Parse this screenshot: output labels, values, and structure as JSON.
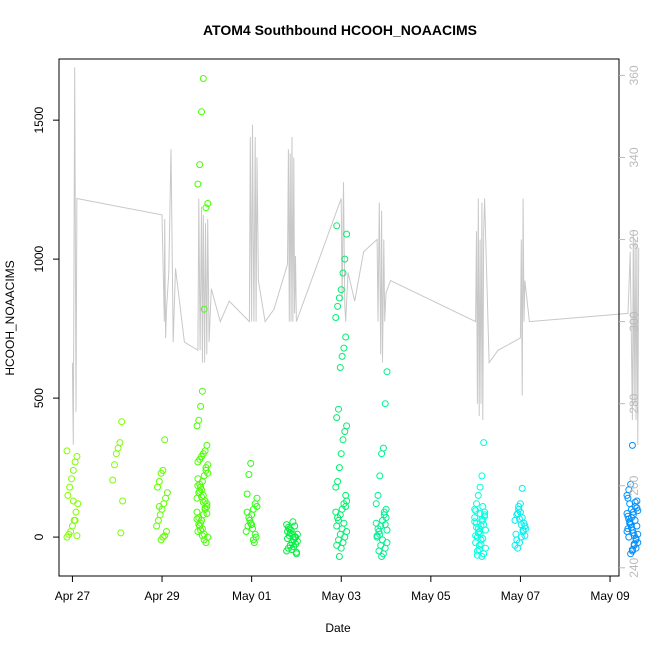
{
  "chart_data": {
    "type": "scatter",
    "title": "ATOM4 Southbound HCOOH_NOAACIMS",
    "xlabel": "Date",
    "ylabel": "HCOOH_NOAACIMS",
    "x_ticks": [
      "Apr 27",
      "Apr 29",
      "May 01",
      "May 03",
      "May 05",
      "May 07",
      "May 09"
    ],
    "x_range_days": [
      26.7,
      39.2
    ],
    "ylim": [
      -140,
      1720
    ],
    "y_ticks": [
      "0",
      "500",
      "1000",
      "1500"
    ],
    "y_tick_values": [
      0,
      500,
      1000,
      1500
    ],
    "y2lim": [
      238,
      364
    ],
    "y2_ticks": [
      "240",
      "260",
      "280",
      "300",
      "320",
      "340",
      "360"
    ],
    "y2_tick_values": [
      240,
      260,
      280,
      300,
      320,
      340,
      360
    ],
    "grid": false,
    "colors": {
      "line": "#c8c8c8",
      "axis": "#000000",
      "right_axis": "#bbbbbb"
    },
    "series": [
      {
        "day": 27.0,
        "color": "#80ff00",
        "values": [
          310,
          290,
          270,
          240,
          210,
          180,
          150,
          120,
          90,
          60,
          40,
          20,
          10,
          0,
          5,
          60,
          130
        ]
      },
      {
        "day": 28.0,
        "color": "#7dff00",
        "values": [
          415,
          340,
          320,
          300,
          260,
          205,
          130,
          15
        ]
      },
      {
        "day": 29.0,
        "color": "#60ff00",
        "values": [
          350,
          240,
          230,
          200,
          180,
          160,
          140,
          120,
          100,
          80,
          60,
          40,
          20,
          5,
          0,
          -10,
          110
        ]
      },
      {
        "day": 29.9,
        "color": "#48ff00",
        "values": [
          1650,
          1530,
          1340,
          1270,
          1200,
          1185,
          820,
          525,
          470,
          420,
          400,
          330,
          310,
          300,
          290,
          280,
          270,
          260,
          240,
          220,
          200,
          180,
          160,
          140,
          120,
          100,
          80,
          60,
          40,
          20,
          0,
          -20,
          10,
          30,
          50,
          70,
          90,
          110,
          130,
          150,
          170,
          190,
          210,
          230,
          250,
          -10,
          5,
          25,
          45,
          65,
          85,
          105,
          125,
          145,
          165,
          185
        ]
      },
      {
        "day": 31.0,
        "color": "#2aff10",
        "values": [
          265,
          225,
          155,
          140,
          120,
          100,
          80,
          60,
          40,
          20,
          0,
          -20,
          30,
          50,
          70,
          90,
          110,
          10,
          -10,
          45
        ]
      },
      {
        "day": 31.9,
        "color": "#00f040",
        "values": [
          30,
          20,
          10,
          0,
          -10,
          -20,
          -30,
          -40,
          -50,
          -60,
          40,
          55,
          25,
          5,
          -5,
          -15,
          -25,
          -35,
          -45,
          15,
          35,
          45,
          -55,
          0,
          10
        ]
      },
      {
        "day": 33.0,
        "color": "#00f070",
        "values": [
          1120,
          1090,
          1000,
          950,
          890,
          860,
          830,
          790,
          720,
          680,
          650,
          610,
          460,
          430,
          400,
          380,
          350,
          300,
          250,
          200,
          180,
          150,
          120,
          100,
          80,
          60,
          40,
          20,
          0,
          -20,
          -40,
          -70,
          70,
          90,
          110,
          50,
          30,
          10,
          -10,
          -30,
          130
        ]
      },
      {
        "day": 33.9,
        "color": "#00f090",
        "values": [
          595,
          480,
          320,
          300,
          220,
          150,
          120,
          100,
          80,
          60,
          40,
          20,
          0,
          -20,
          -40,
          -60,
          -70,
          10,
          30,
          50,
          70,
          90,
          -10,
          -30,
          -50,
          5,
          25,
          45
        ]
      },
      {
        "day": 36.1,
        "color": "#00ffe0",
        "values": [
          340,
          220,
          180,
          150,
          120,
          100,
          80,
          60,
          40,
          20,
          0,
          -20,
          -40,
          -60,
          -70,
          10,
          30,
          50,
          70,
          90,
          110,
          -10,
          -30,
          -50,
          5,
          25,
          45,
          65,
          85,
          15,
          35,
          55,
          75,
          -5,
          -25,
          -45,
          -65,
          95
        ]
      },
      {
        "day": 37.0,
        "color": "#00f0f0",
        "values": [
          175,
          120,
          100,
          80,
          60,
          40,
          20,
          0,
          -20,
          -40,
          10,
          30,
          50,
          70,
          90,
          110,
          -10,
          -30,
          5,
          25,
          45,
          65,
          85
        ]
      },
      {
        "day": 39.5,
        "color": "#0090ff",
        "values": [
          330,
          190,
          170,
          150,
          130,
          110,
          90,
          70,
          50,
          30,
          10,
          -10,
          -30,
          -50,
          -60,
          0,
          20,
          40,
          60,
          80,
          100,
          120,
          140,
          -20,
          -40,
          5,
          25,
          45,
          65,
          85,
          105,
          125,
          15,
          35,
          55,
          75,
          95,
          -5,
          -25,
          -45
        ]
      }
    ],
    "secondary_line": {
      "axis": "right",
      "points": [
        [
          27.0,
          290
        ],
        [
          27.02,
          270
        ],
        [
          27.05,
          362
        ],
        [
          27.08,
          278
        ],
        [
          27.1,
          330
        ],
        [
          29.0,
          326
        ],
        [
          29.05,
          300
        ],
        [
          29.06,
          325
        ],
        [
          29.08,
          296
        ],
        [
          29.1,
          303
        ],
        [
          29.15,
          312
        ],
        [
          29.2,
          342
        ],
        [
          29.25,
          295
        ],
        [
          29.3,
          313
        ],
        [
          29.5,
          295
        ],
        [
          29.8,
          293
        ],
        [
          29.82,
          330
        ],
        [
          29.85,
          293
        ],
        [
          29.88,
          328
        ],
        [
          29.9,
          290
        ],
        [
          29.92,
          326
        ],
        [
          29.95,
          290
        ],
        [
          29.97,
          324
        ],
        [
          30.0,
          292
        ],
        [
          30.02,
          325
        ],
        [
          30.05,
          295
        ],
        [
          30.1,
          308
        ],
        [
          30.3,
          300
        ],
        [
          30.5,
          305
        ],
        [
          30.95,
          300
        ],
        [
          30.97,
          345
        ],
        [
          31.0,
          300
        ],
        [
          31.02,
          348
        ],
        [
          31.05,
          300
        ],
        [
          31.08,
          345
        ],
        [
          31.1,
          300
        ],
        [
          31.12,
          340
        ],
        [
          31.15,
          310
        ],
        [
          31.3,
          300
        ],
        [
          31.5,
          303
        ],
        [
          31.8,
          314
        ],
        [
          31.82,
          342
        ],
        [
          31.84,
          300
        ],
        [
          31.86,
          341
        ],
        [
          31.88,
          300
        ],
        [
          31.9,
          345
        ],
        [
          31.92,
          300
        ],
        [
          31.94,
          340
        ],
        [
          31.96,
          302
        ],
        [
          31.98,
          316
        ],
        [
          32.0,
          300
        ],
        [
          33.0,
          330
        ],
        [
          33.02,
          305
        ],
        [
          33.05,
          334
        ],
        [
          33.08,
          304
        ],
        [
          33.1,
          300
        ],
        [
          33.15,
          312
        ],
        [
          33.3,
          305
        ],
        [
          33.5,
          317
        ],
        [
          33.8,
          320
        ],
        [
          33.82,
          300
        ],
        [
          33.85,
          329
        ],
        [
          33.88,
          292
        ],
        [
          33.9,
          327
        ],
        [
          33.92,
          290
        ],
        [
          33.95,
          320
        ],
        [
          33.97,
          300
        ],
        [
          34.0,
          307
        ],
        [
          34.1,
          310
        ],
        [
          36.0,
          300
        ],
        [
          36.02,
          322
        ],
        [
          36.04,
          280
        ],
        [
          36.06,
          330
        ],
        [
          36.08,
          277
        ],
        [
          36.1,
          320
        ],
        [
          36.12,
          280
        ],
        [
          36.14,
          329
        ],
        [
          36.16,
          276
        ],
        [
          36.18,
          322
        ],
        [
          36.2,
          330
        ],
        [
          36.3,
          290
        ],
        [
          36.5,
          293
        ],
        [
          37.0,
          296
        ],
        [
          37.02,
          320
        ],
        [
          37.04,
          282
        ],
        [
          37.06,
          330
        ],
        [
          37.08,
          300
        ],
        [
          37.1,
          310
        ],
        [
          37.2,
          300
        ],
        [
          39.4,
          302
        ],
        [
          39.45,
          317
        ],
        [
          39.5,
          276
        ],
        [
          39.52,
          322
        ],
        [
          39.54,
          280
        ],
        [
          39.56,
          320
        ],
        [
          39.58,
          276
        ],
        [
          39.6,
          319
        ],
        [
          39.62,
          270
        ],
        [
          39.64,
          318
        ]
      ]
    }
  }
}
